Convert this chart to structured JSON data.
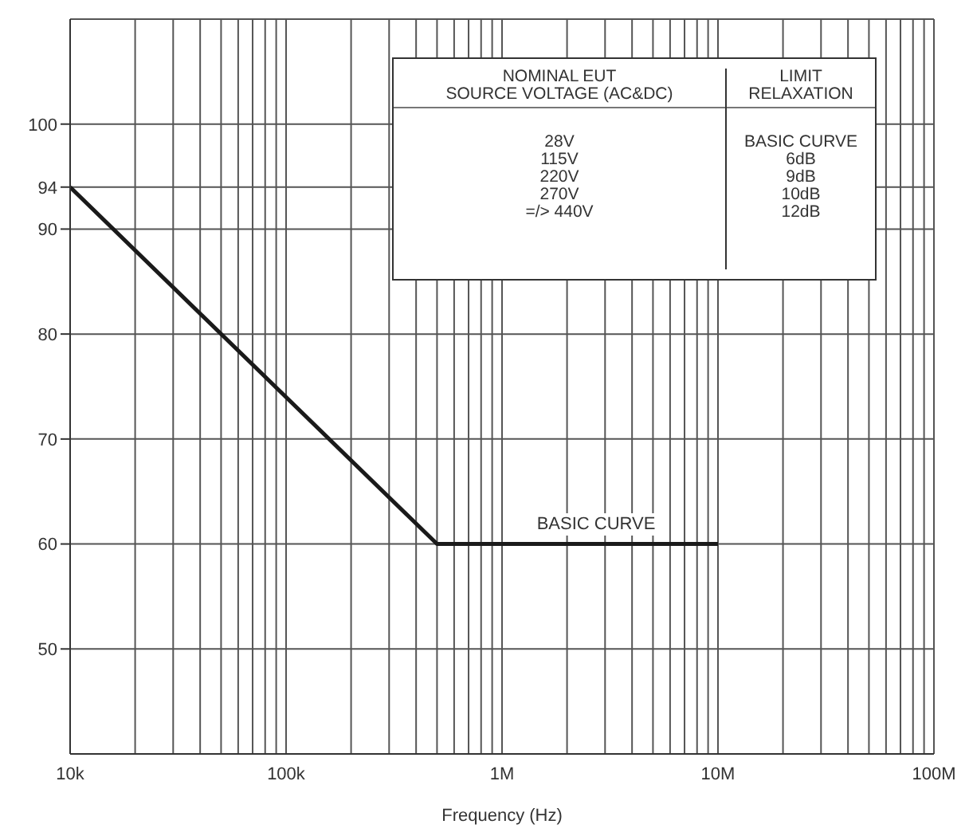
{
  "chart_data": {
    "type": "line",
    "xlabel": "Frequency (Hz)",
    "series": [
      {
        "color": "#1a1a1a",
        "x": [
          10000,
          500000,
          10000000
        ],
        "values": [
          94,
          60,
          60
        ]
      }
    ],
    "log": "x",
    "xlim": [
      10000,
      100000000
    ],
    "ylim": [
      40,
      110
    ],
    "xticks": [
      {
        "value": 10000,
        "label": "10k"
      },
      {
        "value": 20000,
        "label": null
      },
      {
        "value": 30000,
        "label": null
      },
      {
        "value": 40000,
        "label": null
      },
      {
        "value": 50000,
        "label": null
      },
      {
        "value": 60000,
        "label": null
      },
      {
        "value": 70000,
        "label": null
      },
      {
        "value": 80000,
        "label": null
      },
      {
        "value": 90000,
        "label": null
      },
      {
        "value": 100000,
        "label": "100k"
      },
      {
        "value": 200000,
        "label": null
      },
      {
        "value": 300000,
        "label": null
      },
      {
        "value": 400000,
        "label": null
      },
      {
        "value": 500000,
        "label": null
      },
      {
        "value": 600000,
        "label": null
      },
      {
        "value": 700000,
        "label": null
      },
      {
        "value": 800000,
        "label": null
      },
      {
        "value": 900000,
        "label": null
      },
      {
        "value": 1000000,
        "label": "1M"
      },
      {
        "value": 2000000,
        "label": null
      },
      {
        "value": 3000000,
        "label": null
      },
      {
        "value": 4000000,
        "label": null
      },
      {
        "value": 5000000,
        "label": null
      },
      {
        "value": 6000000,
        "label": null
      },
      {
        "value": 7000000,
        "label": null
      },
      {
        "value": 8000000,
        "label": null
      },
      {
        "value": 9000000,
        "label": null
      },
      {
        "value": 10000000,
        "label": "10M"
      },
      {
        "value": 20000000,
        "label": null
      },
      {
        "value": 30000000,
        "label": null
      },
      {
        "value": 40000000,
        "label": null
      },
      {
        "value": 50000000,
        "label": null
      },
      {
        "value": 60000000,
        "label": null
      },
      {
        "value": 70000000,
        "label": null
      },
      {
        "value": 80000000,
        "label": null
      },
      {
        "value": 90000000,
        "label": null
      },
      {
        "value": 100000000,
        "label": "100M"
      }
    ],
    "yticks": [
      50,
      60,
      70,
      80,
      90,
      94,
      100
    ],
    "grid": true,
    "marker": "none",
    "line_style": "solid",
    "annotations": [
      "NOMINAL EUT",
      "SOURCE VOLTAGE (AC&DC)",
      "LIMIT",
      "RELAXATION",
      "28V",
      "115V",
      "220V",
      "270V",
      "=/> 440V",
      "BASIC CURVE",
      "6dB",
      "9dB",
      "10dB",
      "12dB",
      "BASIC CURVE"
    ]
  }
}
